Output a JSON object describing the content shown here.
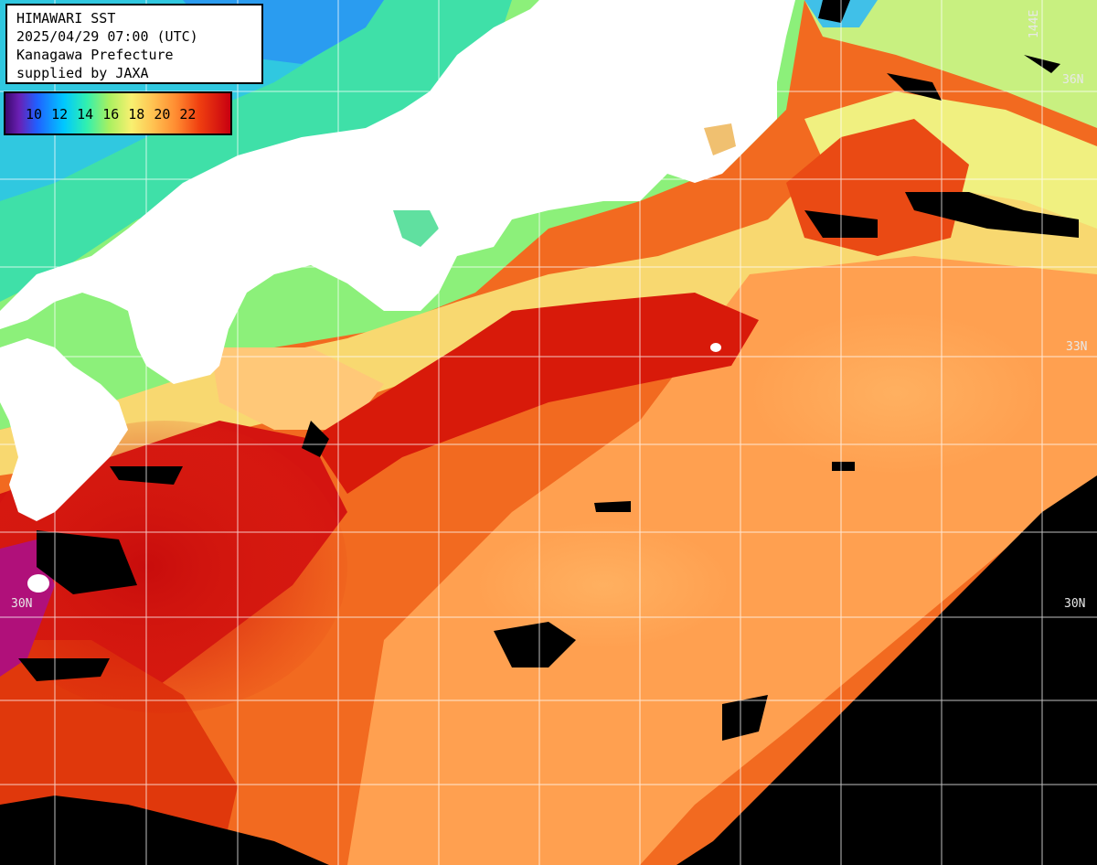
{
  "info": {
    "title": "HIMAWARI SST",
    "datetime": "2025/04/29 07:00 (UTC)",
    "organization": "Kanagawa Prefecture",
    "credit": "supplied by JAXA"
  },
  "legend": {
    "labels": [
      "10",
      "12",
      "14",
      "16",
      "18",
      "20",
      "22"
    ]
  },
  "grid_labels": {
    "lat_36": "36N",
    "lat_33": "33N",
    "lat_30_left": "30N",
    "lat_30_right": "30N",
    "lon_144": "144E"
  },
  "colors": {
    "land": "#ffffff",
    "cloud_nodata": "#000000",
    "grid": "#ffffff",
    "temp_10": "#3b0a6e",
    "temp_12": "#2060ff",
    "temp_14": "#30f0b0",
    "temp_16": "#a8f060",
    "temp_18": "#f8f070",
    "temp_20": "#ff8a30",
    "temp_22": "#c80010"
  }
}
